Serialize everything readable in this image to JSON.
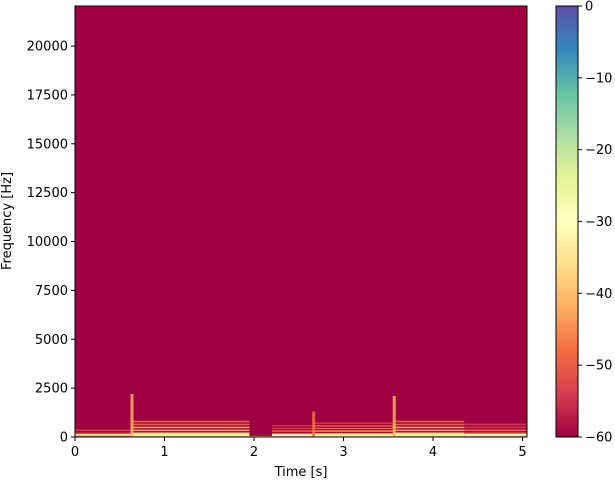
{
  "chart_data": {
    "type": "heatmap",
    "title": "",
    "xlabel": "Time [s]",
    "ylabel": "Frequency [Hz]",
    "xlim": [
      0,
      5.05
    ],
    "ylim": [
      0,
      22050
    ],
    "xticks": [
      0,
      1,
      2,
      3,
      4,
      5
    ],
    "yticks": [
      0,
      2500,
      5000,
      7500,
      10000,
      12500,
      15000,
      17500,
      20000
    ],
    "colorbar": {
      "colormap": "Spectral",
      "range": [
        -60,
        0
      ],
      "ticks": [
        0,
        -10,
        -20,
        -30,
        -40,
        -50,
        -60
      ],
      "tick_labels": [
        "0",
        "−10",
        "−20",
        "−30",
        "−40",
        "−50",
        "−60"
      ]
    },
    "background_level": -60,
    "events": [
      {
        "t_start": 0.0,
        "t_end": 0.62,
        "f_max": 900,
        "level": -50
      },
      {
        "t_start": 0.62,
        "t_end": 1.95,
        "f_max": 900,
        "level": -35,
        "onset_f_max": 2200
      },
      {
        "t_start": 1.95,
        "t_end": 2.2,
        "f_max": 300,
        "level": -55
      },
      {
        "t_start": 2.2,
        "t_end": 2.65,
        "f_max": 800,
        "level": -45
      },
      {
        "t_start": 2.65,
        "t_end": 3.55,
        "f_max": 800,
        "level": -38,
        "onset_f_max": 1300
      },
      {
        "t_start": 3.55,
        "t_end": 4.35,
        "f_max": 900,
        "level": -35,
        "onset_f_max": 2100
      },
      {
        "t_start": 4.35,
        "t_end": 5.05,
        "f_max": 900,
        "level": -45
      }
    ]
  },
  "colors": {
    "background": "#9e0142",
    "spectral_stops": [
      "#9e0142",
      "#d53e4f",
      "#f46d43",
      "#fdae61",
      "#fee08b",
      "#ffffbf",
      "#e6f598",
      "#abdda4",
      "#66c2a5",
      "#3288bd",
      "#5e4fa2"
    ]
  }
}
